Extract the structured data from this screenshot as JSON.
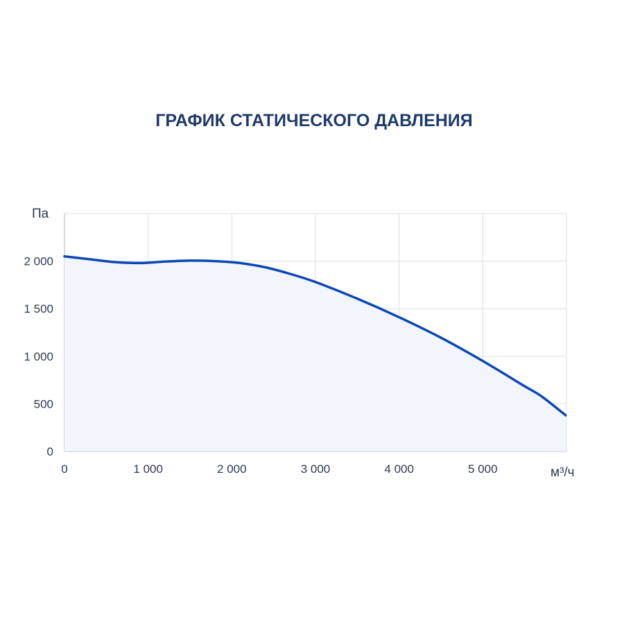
{
  "chart_data": {
    "type": "area",
    "title": "ГРАФИК СТАТИЧЕСКОГО ДАВЛЕНИЯ",
    "xlabel": "м³/ч",
    "ylabel": "Па",
    "xlim": [
      0,
      6000
    ],
    "ylim": [
      0,
      2500
    ],
    "x_ticks": [
      0,
      1000,
      2000,
      3000,
      4000,
      5000
    ],
    "x_tick_labels": [
      "0",
      "1 000",
      "2 000",
      "3 000",
      "4 000",
      "5 000"
    ],
    "y_ticks": [
      0,
      500,
      1000,
      1500,
      2000
    ],
    "y_tick_labels": [
      "0",
      "500",
      "1 000",
      "1 500",
      "2 000"
    ],
    "grid": true,
    "series": [
      {
        "x": [
          0,
          300,
          600,
          900,
          1200,
          1500,
          1800,
          2100,
          2400,
          2700,
          3000,
          3500,
          4000,
          4500,
          5000,
          5500,
          5700,
          5990
        ],
        "values": [
          2050,
          2020,
          1990,
          1980,
          1995,
          2005,
          2000,
          1980,
          1935,
          1865,
          1780,
          1605,
          1410,
          1195,
          950,
          685,
          580,
          380
        ]
      }
    ],
    "colors": {
      "line": "#0a47b5",
      "fill": "#f2f5fb",
      "grid": "#d9dee7",
      "tick_text": "#2b3a52",
      "title": "#1d3a6b"
    }
  }
}
